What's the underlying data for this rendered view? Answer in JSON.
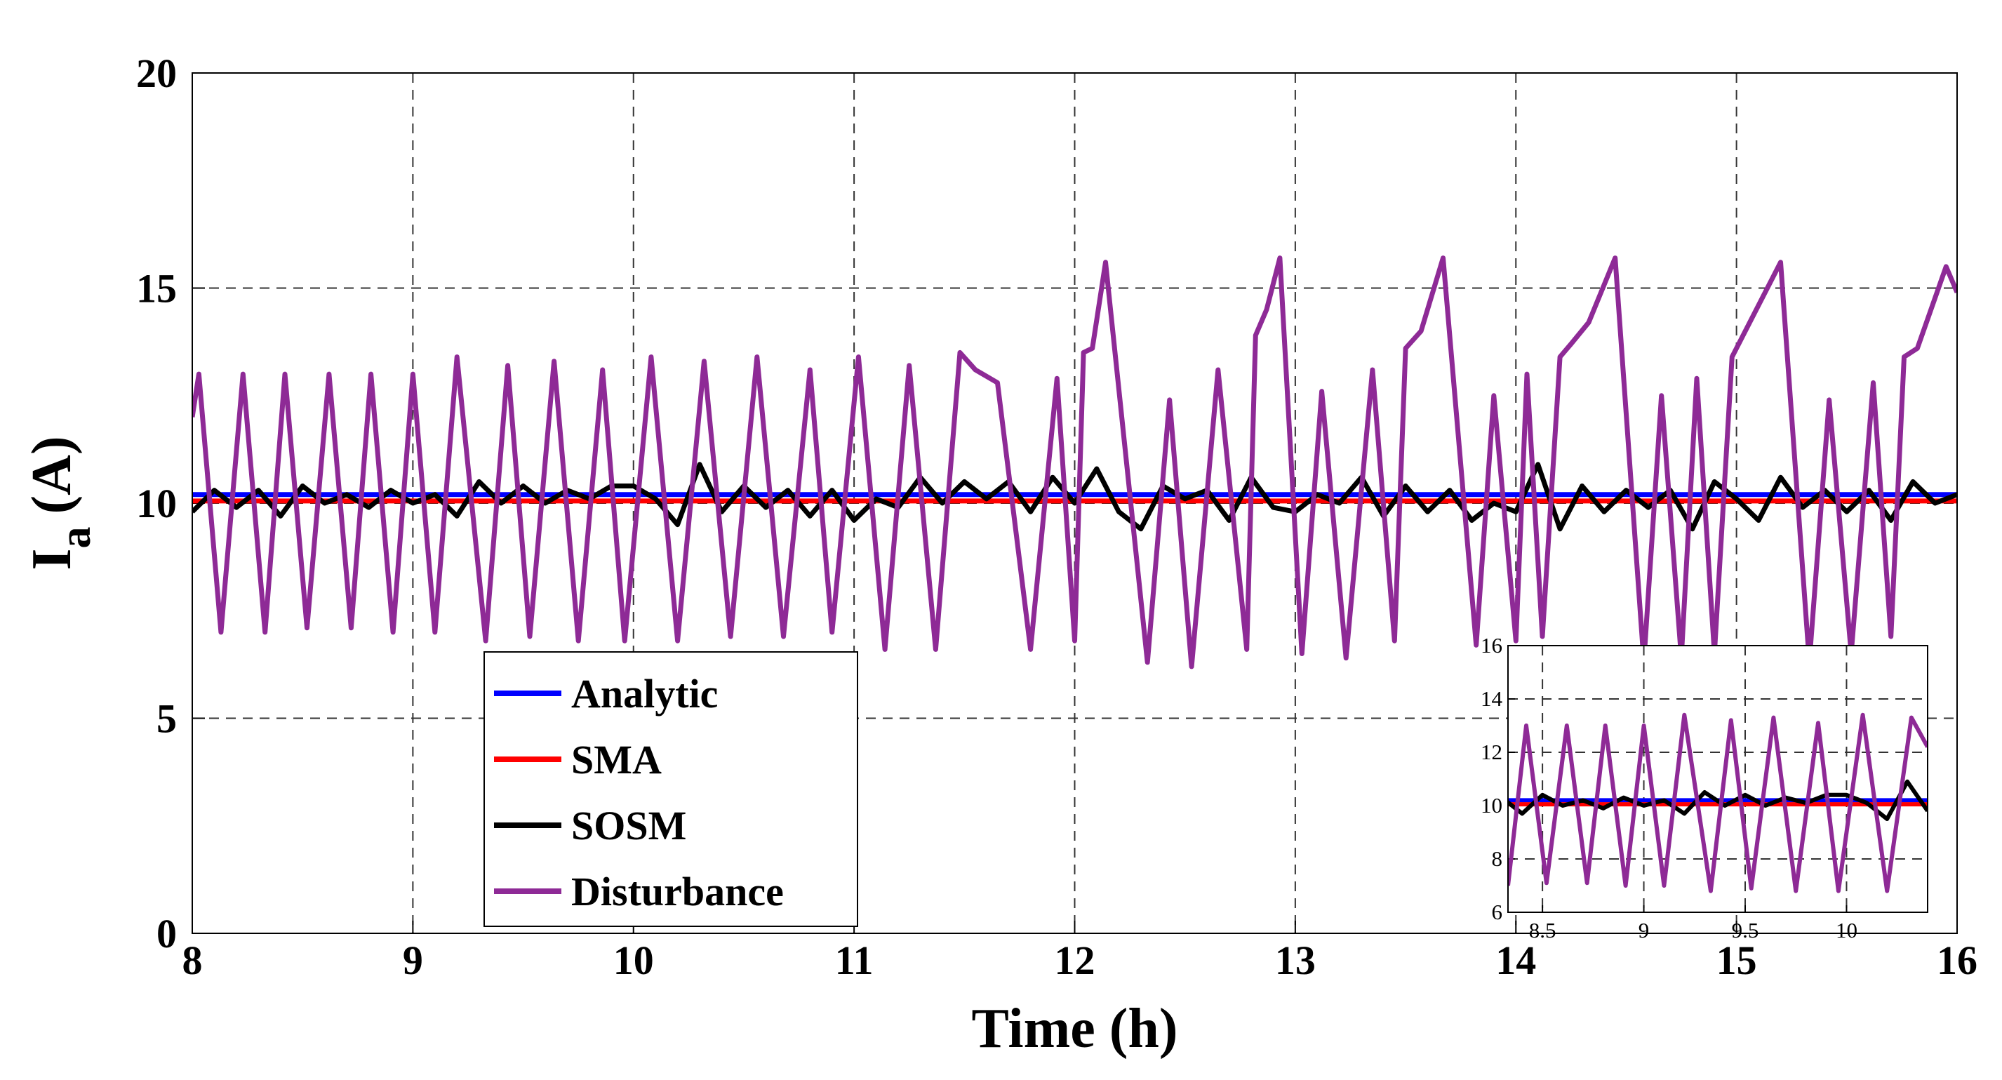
{
  "chart_data": [
    {
      "type": "line",
      "xlabel": "Time (h)",
      "ylabel": [
        "I",
        "a",
        "(A)"
      ],
      "xlim": [
        8,
        16
      ],
      "ylim": [
        0,
        20
      ],
      "xticks": [
        8,
        9,
        10,
        11,
        12,
        13,
        14,
        15,
        16
      ],
      "yticks": [
        0,
        5,
        10,
        15,
        20
      ],
      "grid": true,
      "series": [
        {
          "name": "Analytic",
          "color": "#0000ff",
          "x": [
            8,
            16
          ],
          "values": [
            10.2,
            10.2
          ]
        },
        {
          "name": "SMA",
          "color": "#ff0000",
          "x": [
            8,
            16
          ],
          "values": [
            10.05,
            10.05
          ]
        },
        {
          "name": "SOSM",
          "color": "#000000",
          "x": [
            8.0,
            8.1,
            8.2,
            8.3,
            8.4,
            8.5,
            8.6,
            8.7,
            8.8,
            8.9,
            9.0,
            9.1,
            9.2,
            9.3,
            9.4,
            9.5,
            9.6,
            9.7,
            9.8,
            9.9,
            10.0,
            10.1,
            10.2,
            10.3,
            10.4,
            10.5,
            10.6,
            10.7,
            10.8,
            10.9,
            11.0,
            11.1,
            11.2,
            11.3,
            11.4,
            11.5,
            11.6,
            11.7,
            11.8,
            11.9,
            12.0,
            12.1,
            12.2,
            12.3,
            12.4,
            12.5,
            12.6,
            12.7,
            12.8,
            12.9,
            13.0,
            13.1,
            13.2,
            13.3,
            13.4,
            13.5,
            13.6,
            13.7,
            13.8,
            13.9,
            14.0,
            14.1,
            14.2,
            14.3,
            14.4,
            14.5,
            14.6,
            14.7,
            14.8,
            14.9,
            15.0,
            15.1,
            15.2,
            15.3,
            15.4,
            15.5,
            15.6,
            15.7,
            15.8,
            15.9,
            16.0
          ],
          "values": [
            9.8,
            10.3,
            9.9,
            10.3,
            9.7,
            10.4,
            10.0,
            10.2,
            9.9,
            10.3,
            10.0,
            10.2,
            9.7,
            10.5,
            10.0,
            10.4,
            10.0,
            10.3,
            10.1,
            10.4,
            10.4,
            10.1,
            9.5,
            10.9,
            9.8,
            10.4,
            9.9,
            10.3,
            9.7,
            10.3,
            9.6,
            10.1,
            9.9,
            10.6,
            10.0,
            10.5,
            10.1,
            10.5,
            9.8,
            10.6,
            10.0,
            10.8,
            9.8,
            9.4,
            10.4,
            10.1,
            10.3,
            9.6,
            10.6,
            9.9,
            9.8,
            10.2,
            10.0,
            10.6,
            9.7,
            10.4,
            9.8,
            10.3,
            9.6,
            10.0,
            9.8,
            10.9,
            9.4,
            10.4,
            9.8,
            10.3,
            9.9,
            10.3,
            9.4,
            10.5,
            10.1,
            9.6,
            10.6,
            9.9,
            10.3,
            9.8,
            10.3,
            9.6,
            10.5,
            10.0,
            10.2
          ]
        },
        {
          "name": "Disturbance",
          "color": "#8e2a96",
          "x": [
            8.0,
            8.03,
            8.13,
            8.23,
            8.33,
            8.42,
            8.52,
            8.62,
            8.72,
            8.81,
            8.91,
            9.0,
            9.1,
            9.2,
            9.33,
            9.43,
            9.53,
            9.64,
            9.75,
            9.86,
            9.96,
            10.08,
            10.2,
            10.32,
            10.44,
            10.56,
            10.68,
            10.8,
            10.9,
            11.02,
            11.14,
            11.25,
            11.37,
            11.48,
            11.55,
            11.65,
            11.8,
            11.92,
            12.0,
            12.04,
            12.08,
            12.14,
            12.33,
            12.43,
            12.53,
            12.65,
            12.78,
            12.82,
            12.87,
            12.93,
            13.03,
            13.12,
            13.23,
            13.35,
            13.45,
            13.5,
            13.57,
            13.67,
            13.82,
            13.9,
            14.0,
            14.05,
            14.12,
            14.2,
            14.25,
            14.33,
            14.45,
            14.58,
            14.66,
            14.75,
            14.82,
            14.9,
            14.98,
            15.05,
            15.2,
            15.33,
            15.42,
            15.52,
            15.62,
            15.7,
            15.76,
            15.82,
            15.95,
            16.0
          ],
          "values": [
            12.0,
            13.0,
            7.0,
            13.0,
            7.0,
            13.0,
            7.1,
            13.0,
            7.1,
            13.0,
            7.0,
            13.0,
            7.0,
            13.4,
            6.8,
            13.2,
            6.9,
            13.3,
            6.8,
            13.1,
            6.8,
            13.4,
            6.8,
            13.3,
            6.9,
            13.4,
            6.9,
            13.1,
            7.0,
            13.4,
            6.6,
            13.2,
            6.6,
            13.5,
            13.1,
            12.8,
            6.6,
            12.9,
            6.8,
            13.5,
            13.6,
            15.6,
            6.3,
            12.4,
            6.2,
            13.1,
            6.6,
            13.9,
            14.5,
            15.7,
            6.5,
            12.6,
            6.4,
            13.1,
            6.8,
            13.6,
            14.0,
            15.7,
            6.7,
            12.5,
            6.8,
            13.0,
            6.9,
            13.4,
            13.7,
            14.2,
            15.7,
            6.3,
            12.5,
            6.4,
            12.9,
            6.5,
            13.4,
            14.1,
            15.6,
            6.3,
            12.4,
            6.5,
            12.8,
            6.9,
            13.4,
            13.6,
            15.5,
            14.9
          ]
        }
      ]
    },
    {
      "type": "line",
      "xlim": [
        8.33,
        10.4
      ],
      "ylim": [
        6,
        16
      ],
      "xticks": [
        8.5,
        9,
        9.5,
        10
      ],
      "yticks": [
        6,
        8,
        10,
        12,
        14,
        16
      ],
      "grid": true,
      "series": [
        {
          "name": "Analytic",
          "color": "#0000ff",
          "x": [
            8.33,
            10.4
          ],
          "values": [
            10.2,
            10.2
          ]
        },
        {
          "name": "SMA",
          "color": "#ff0000",
          "x": [
            8.33,
            10.4
          ],
          "values": [
            10.05,
            10.05
          ]
        },
        {
          "name": "SOSM",
          "color": "#000000",
          "x": [
            8.3,
            8.4,
            8.5,
            8.6,
            8.7,
            8.8,
            8.9,
            9.0,
            9.1,
            9.2,
            9.3,
            9.4,
            9.5,
            9.6,
            9.7,
            9.8,
            9.9,
            10.0,
            10.1,
            10.2,
            10.3,
            10.4
          ],
          "values": [
            10.3,
            9.7,
            10.4,
            10.0,
            10.2,
            9.9,
            10.3,
            10.0,
            10.2,
            9.7,
            10.5,
            10.0,
            10.4,
            10.0,
            10.3,
            10.1,
            10.4,
            10.4,
            10.1,
            9.5,
            10.9,
            9.8
          ]
        },
        {
          "name": "Disturbance",
          "color": "#8e2a96",
          "x": [
            8.33,
            8.42,
            8.52,
            8.62,
            8.72,
            8.81,
            8.91,
            9.0,
            9.1,
            9.2,
            9.33,
            9.43,
            9.53,
            9.64,
            9.75,
            9.86,
            9.96,
            10.08,
            10.2,
            10.32,
            10.4
          ],
          "values": [
            7.0,
            13.0,
            7.1,
            13.0,
            7.1,
            13.0,
            7.0,
            13.0,
            7.0,
            13.4,
            6.8,
            13.2,
            6.9,
            13.3,
            6.8,
            13.1,
            6.8,
            13.4,
            6.8,
            13.3,
            12.2
          ]
        }
      ]
    }
  ]
}
